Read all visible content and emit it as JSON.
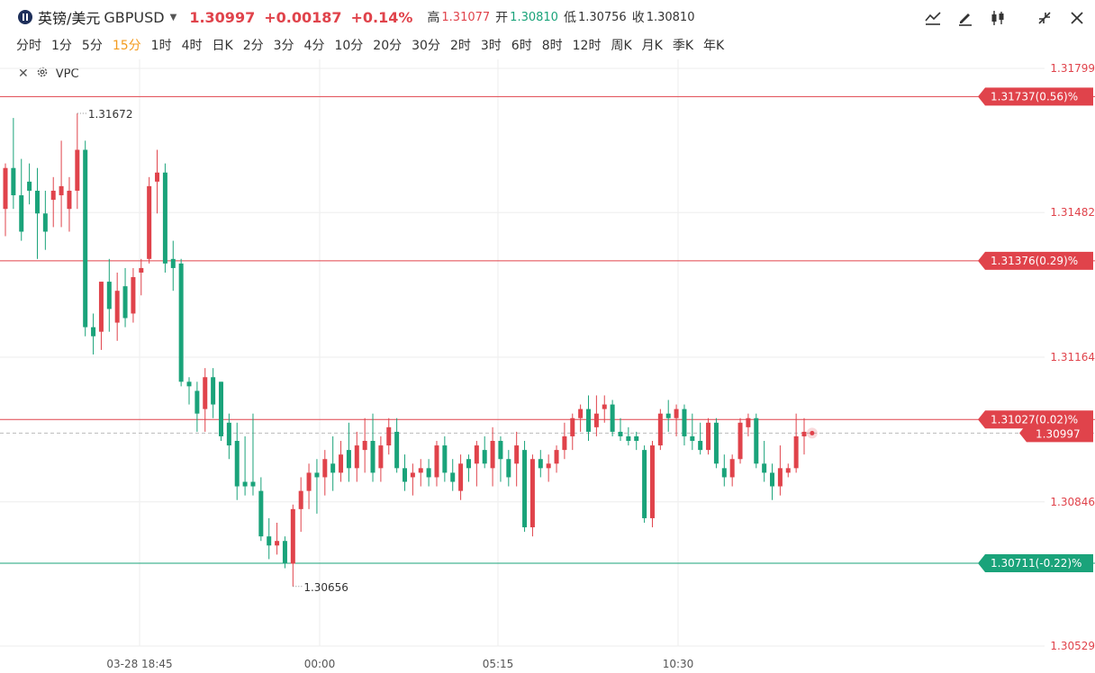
{
  "header": {
    "name": "英镑/美元",
    "symbol": "GBPUSD",
    "price": "1.30997",
    "change": "+0.00187",
    "change_pct": "+0.14%",
    "high_label": "高",
    "high": "1.31077",
    "open_label": "开",
    "open": "1.30810",
    "low_label": "低",
    "low": "1.30756",
    "close_label": "收",
    "close": "1.30810"
  },
  "periods": [
    "分时",
    "1分",
    "5分",
    "15分",
    "1时",
    "4时",
    "日K",
    "2分",
    "3分",
    "4分",
    "10分",
    "20分",
    "30分",
    "2时",
    "3时",
    "6时",
    "8时",
    "12时",
    "周K",
    "月K",
    "季K",
    "年K"
  ],
  "active_period": "15分",
  "indicator": {
    "name": "VPC"
  },
  "tools": [
    "line-style-icon",
    "edit-icon",
    "candlestick-icon",
    "collapse-icon",
    "close-icon"
  ],
  "colors": {
    "up": "#e0434b",
    "down": "#1aa37a",
    "accent": "#f39b1e",
    "current": "#e0434b"
  },
  "chart_data": {
    "type": "candlestick",
    "y_axis_ticks": [
      "1.31799",
      "1.31482",
      "1.31164",
      "1.30846",
      "1.30529"
    ],
    "ylim": [
      1.30529,
      1.31799
    ],
    "x_axis_ticks": [
      "03-28 18:45",
      "00:00",
      "05:15",
      "10:30"
    ],
    "high_marker": "1.31672",
    "low_marker": "1.30656",
    "current_price": "1.30997",
    "levels": [
      {
        "value": 1.31737,
        "label": "1.31737(0.56)%",
        "color": "#e0434b"
      },
      {
        "value": 1.31376,
        "label": "1.31376(0.29)%",
        "color": "#e0434b"
      },
      {
        "value": 1.31027,
        "label": "1.31027(0.02)%",
        "color": "#e0434b"
      },
      {
        "value": 1.30711,
        "label": "1.30711(-0.22)%",
        "color": "#1aa37a"
      }
    ],
    "candles": [
      [
        1.3149,
        1.3159,
        1.3143,
        1.3158
      ],
      [
        1.3158,
        1.3169,
        1.3149,
        1.3152
      ],
      [
        1.3152,
        1.316,
        1.3142,
        1.3144
      ],
      [
        1.3155,
        1.3159,
        1.315,
        1.3153
      ],
      [
        1.3153,
        1.3158,
        1.3138,
        1.3148
      ],
      [
        1.3148,
        1.3153,
        1.314,
        1.3144
      ],
      [
        1.3151,
        1.3156,
        1.3145,
        1.3153
      ],
      [
        1.3152,
        1.3164,
        1.3145,
        1.3154
      ],
      [
        1.3149,
        1.3156,
        1.3144,
        1.3153
      ],
      [
        1.3153,
        1.317,
        1.3149,
        1.3162
      ],
      [
        1.3162,
        1.3164,
        1.3121,
        1.3123
      ],
      [
        1.3123,
        1.3126,
        1.3117,
        1.3121
      ],
      [
        1.3122,
        1.3133,
        1.3118,
        1.3133
      ],
      [
        1.3133,
        1.3138,
        1.3122,
        1.3127
      ],
      [
        1.3124,
        1.3135,
        1.312,
        1.3131
      ],
      [
        1.3132,
        1.3136,
        1.3123,
        1.3125
      ],
      [
        1.3126,
        1.3136,
        1.3124,
        1.3134
      ],
      [
        1.3135,
        1.3138,
        1.313,
        1.3136
      ],
      [
        1.3138,
        1.3156,
        1.3137,
        1.3154
      ],
      [
        1.3155,
        1.3162,
        1.3148,
        1.3157
      ],
      [
        1.3157,
        1.3159,
        1.3135,
        1.3137
      ],
      [
        1.3138,
        1.3142,
        1.3131,
        1.3136
      ],
      [
        1.3137,
        1.3138,
        1.311,
        1.3111
      ],
      [
        1.3111,
        1.3112,
        1.3106,
        1.311
      ],
      [
        1.3109,
        1.3111,
        1.31,
        1.3104
      ],
      [
        1.3105,
        1.3114,
        1.31,
        1.3112
      ],
      [
        1.3112,
        1.3114,
        1.3103,
        1.3106
      ],
      [
        1.3111,
        1.3111,
        1.3098,
        1.3099
      ],
      [
        1.3102,
        1.3104,
        1.3094,
        1.3097
      ],
      [
        1.3098,
        1.3102,
        1.3085,
        1.3088
      ],
      [
        1.3089,
        1.3099,
        1.3086,
        1.3088
      ],
      [
        1.3089,
        1.3104,
        1.3086,
        1.3088
      ],
      [
        1.3087,
        1.309,
        1.3076,
        1.3077
      ],
      [
        1.3077,
        1.3081,
        1.3072,
        1.3075
      ],
      [
        1.3075,
        1.308,
        1.3073,
        1.3076
      ],
      [
        1.3076,
        1.3077,
        1.307,
        1.3071
      ],
      [
        1.3071,
        1.3084,
        1.3066,
        1.3083
      ],
      [
        1.3083,
        1.309,
        1.3078,
        1.3087
      ],
      [
        1.3087,
        1.3093,
        1.3083,
        1.3091
      ],
      [
        1.3091,
        1.3094,
        1.3082,
        1.309
      ],
      [
        1.309,
        1.3096,
        1.3086,
        1.3094
      ],
      [
        1.3093,
        1.3099,
        1.3087,
        1.3091
      ],
      [
        1.3091,
        1.3098,
        1.3089,
        1.3095
      ],
      [
        1.3096,
        1.3102,
        1.3089,
        1.3092
      ],
      [
        1.3092,
        1.31,
        1.3089,
        1.3097
      ],
      [
        1.3096,
        1.3103,
        1.3091,
        1.3098
      ],
      [
        1.3098,
        1.3104,
        1.3089,
        1.3091
      ],
      [
        1.3092,
        1.3099,
        1.3089,
        1.3097
      ],
      [
        1.3097,
        1.3103,
        1.3095,
        1.3101
      ],
      [
        1.31,
        1.3103,
        1.3091,
        1.3092
      ],
      [
        1.3092,
        1.3095,
        1.3087,
        1.3089
      ],
      [
        1.309,
        1.3093,
        1.3086,
        1.3091
      ],
      [
        1.3091,
        1.3094,
        1.3088,
        1.3092
      ],
      [
        1.3092,
        1.3094,
        1.3088,
        1.309
      ],
      [
        1.309,
        1.3098,
        1.3088,
        1.3097
      ],
      [
        1.3097,
        1.3099,
        1.3089,
        1.3091
      ],
      [
        1.3091,
        1.3094,
        1.3087,
        1.3089
      ],
      [
        1.3087,
        1.3095,
        1.3085,
        1.3093
      ],
      [
        1.3094,
        1.3095,
        1.3089,
        1.3092
      ],
      [
        1.3093,
        1.3098,
        1.3088,
        1.3097
      ],
      [
        1.3096,
        1.3099,
        1.3092,
        1.3093
      ],
      [
        1.3092,
        1.3101,
        1.3088,
        1.3098
      ],
      [
        1.3098,
        1.3099,
        1.3089,
        1.3094
      ],
      [
        1.3094,
        1.3096,
        1.3088,
        1.309
      ],
      [
        1.3093,
        1.31,
        1.3088,
        1.3097
      ],
      [
        1.3096,
        1.3098,
        1.3078,
        1.3079
      ],
      [
        1.3079,
        1.3095,
        1.3077,
        1.3094
      ],
      [
        1.3094,
        1.3096,
        1.309,
        1.3092
      ],
      [
        1.3092,
        1.3095,
        1.3089,
        1.3093
      ],
      [
        1.3093,
        1.3097,
        1.3091,
        1.3096
      ],
      [
        1.3096,
        1.3102,
        1.3094,
        1.3099
      ],
      [
        1.3099,
        1.3104,
        1.3096,
        1.3103
      ],
      [
        1.3103,
        1.3106,
        1.31,
        1.3105
      ],
      [
        1.3105,
        1.3108,
        1.3098,
        1.31
      ],
      [
        1.3101,
        1.3108,
        1.3099,
        1.3104
      ],
      [
        1.3105,
        1.3108,
        1.3102,
        1.3106
      ],
      [
        1.3106,
        1.3107,
        1.3099,
        1.31
      ],
      [
        1.31,
        1.3103,
        1.3098,
        1.3099
      ],
      [
        1.3099,
        1.3101,
        1.3097,
        1.3098
      ],
      [
        1.3099,
        1.31,
        1.3096,
        1.3098
      ],
      [
        1.3096,
        1.3097,
        1.308,
        1.3081
      ],
      [
        1.3081,
        1.3098,
        1.3079,
        1.3097
      ],
      [
        1.3097,
        1.3105,
        1.3096,
        1.3104
      ],
      [
        1.3104,
        1.3107,
        1.31,
        1.3103
      ],
      [
        1.3103,
        1.3106,
        1.3099,
        1.3105
      ],
      [
        1.3105,
        1.3106,
        1.3097,
        1.3099
      ],
      [
        1.3099,
        1.3104,
        1.3096,
        1.3098
      ],
      [
        1.3098,
        1.3102,
        1.3095,
        1.3096
      ],
      [
        1.3096,
        1.3103,
        1.3095,
        1.3102
      ],
      [
        1.3102,
        1.3103,
        1.3092,
        1.3093
      ],
      [
        1.3092,
        1.3095,
        1.3088,
        1.309
      ],
      [
        1.309,
        1.3095,
        1.3088,
        1.3094
      ],
      [
        1.3094,
        1.3103,
        1.3093,
        1.3102
      ],
      [
        1.3101,
        1.3104,
        1.3099,
        1.3103
      ],
      [
        1.3103,
        1.3104,
        1.3092,
        1.3093
      ],
      [
        1.3093,
        1.3098,
        1.3089,
        1.3091
      ],
      [
        1.3091,
        1.3093,
        1.3085,
        1.3088
      ],
      [
        1.3088,
        1.3097,
        1.3086,
        1.3092
      ],
      [
        1.3091,
        1.3093,
        1.309,
        1.3092
      ],
      [
        1.3092,
        1.3104,
        1.3091,
        1.3099
      ],
      [
        1.3099,
        1.3103,
        1.3095,
        1.31
      ]
    ]
  }
}
